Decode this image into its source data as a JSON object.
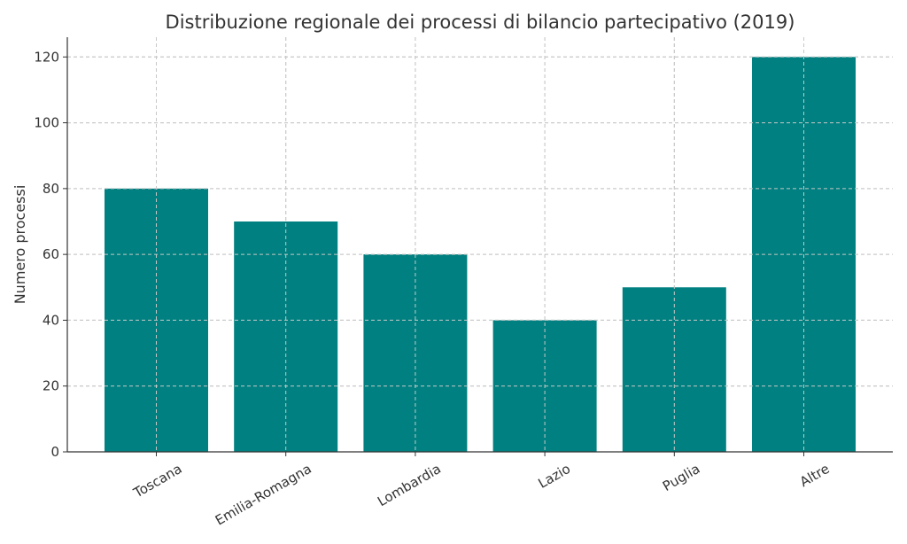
{
  "chart_data": {
    "type": "bar",
    "title": "Distribuzione regionale dei processi di bilancio partecipativo (2019)",
    "xlabel": "",
    "ylabel": "Numero processi",
    "categories": [
      "Toscana",
      "Emilia-Romagna",
      "Lombardia",
      "Lazio",
      "Puglia",
      "Altre"
    ],
    "values": [
      80,
      70,
      60,
      40,
      50,
      120
    ],
    "yticks": [
      0,
      20,
      40,
      60,
      80,
      100,
      120
    ],
    "ylim": [
      0,
      126
    ],
    "grid": true,
    "bar_color": "#008080"
  }
}
